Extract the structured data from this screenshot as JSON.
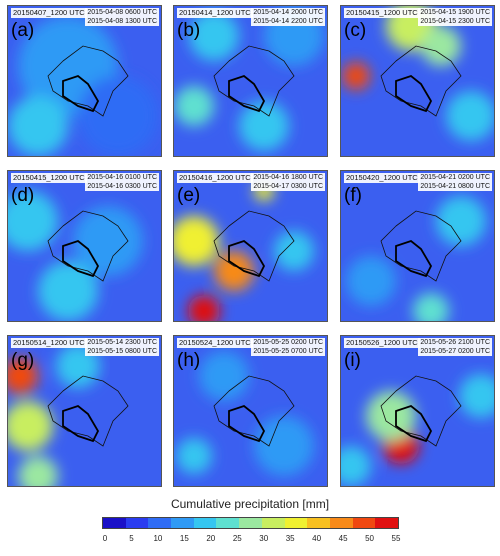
{
  "panels": [
    {
      "letter": "(a)",
      "run": "20150407_1200 UTC",
      "start": "2015-04-08 0600 UTC",
      "end": "2015-04-08 1300 UTC"
    },
    {
      "letter": "(b)",
      "run": "20150414_1200 UTC",
      "start": "2015-04-14 2000 UTC",
      "end": "2015-04-14 2200 UTC"
    },
    {
      "letter": "(c)",
      "run": "20150415_1200 UTC",
      "start": "2015-04-15 1900 UTC",
      "end": "2015-04-15 2300 UTC"
    },
    {
      "letter": "(d)",
      "run": "20150415_1200 UTC",
      "start": "2015-04-16 0100 UTC",
      "end": "2015-04-16 0300 UTC"
    },
    {
      "letter": "(e)",
      "run": "20150416_1200 UTC",
      "start": "2015-04-16 1800 UTC",
      "end": "2015-04-17 0300 UTC"
    },
    {
      "letter": "(f)",
      "run": "20150420_1200 UTC",
      "start": "2015-04-21 0200 UTC",
      "end": "2015-04-21 0800 UTC"
    },
    {
      "letter": "(g)",
      "run": "20150514_1200 UTC",
      "start": "2015-05-14 2300 UTC",
      "end": "2015-05-15 0800 UTC"
    },
    {
      "letter": "(h)",
      "run": "20150524_1200 UTC",
      "start": "2015-05-25 0200 UTC",
      "end": "2015-05-25 0700 UTC"
    },
    {
      "letter": "(i)",
      "run": "20150526_1200 UTC",
      "start": "2015-05-26 2100 UTC",
      "end": "2015-05-27 0200 UTC"
    }
  ],
  "colorbar": {
    "title": "Cumulative precipitation [mm]",
    "ticks": [
      "0",
      "5",
      "10",
      "15",
      "20",
      "25",
      "30",
      "35",
      "40",
      "45",
      "50",
      "55"
    ],
    "colors": [
      "#1a10c8",
      "#2a3cf0",
      "#2f6cf5",
      "#2f9af5",
      "#35c6f0",
      "#5ee0d0",
      "#9be8a0",
      "#c8ee60",
      "#f0f030",
      "#f8c020",
      "#f88a18",
      "#f04810",
      "#e01010"
    ]
  }
}
